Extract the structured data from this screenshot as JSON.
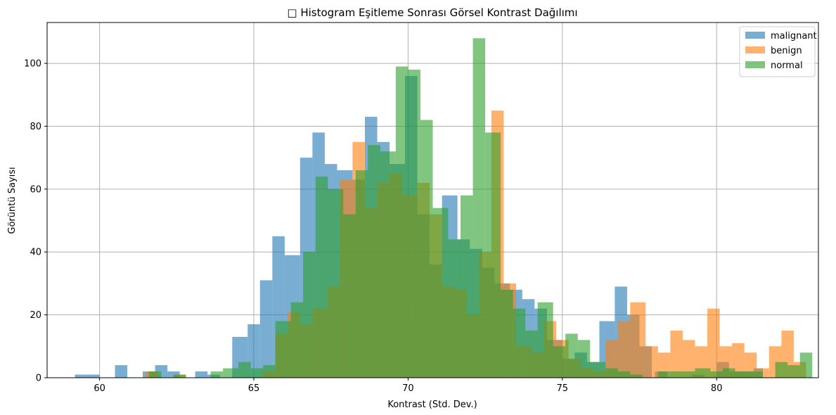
{
  "chart_data": {
    "type": "bar",
    "title": "□ Histogram Eşitleme Sonrası Görsel Kontrast Dağılımı",
    "xlabel": "Kontrast (Std. Dev.)",
    "ylabel": "Görüntü Sayısı",
    "xlim": [
      58.3,
      83.3
    ],
    "ylim": [
      0,
      113
    ],
    "xticks": [
      60,
      65,
      70,
      75,
      80
    ],
    "yticks": [
      0,
      20,
      40,
      60,
      80,
      100
    ],
    "grid": true,
    "legend_position": "top-right",
    "series": [
      {
        "name": "malignant",
        "color": "#1f77b4",
        "bins": [
          [
            59.2,
            59.6,
            1
          ],
          [
            59.6,
            60.0,
            1
          ],
          [
            60.5,
            60.9,
            4
          ],
          [
            61.4,
            61.8,
            2
          ],
          [
            61.8,
            62.2,
            4
          ],
          [
            62.2,
            62.6,
            2
          ],
          [
            63.1,
            63.5,
            2
          ],
          [
            63.5,
            63.9,
            1
          ],
          [
            64.3,
            64.8,
            13
          ],
          [
            64.8,
            65.2,
            17
          ],
          [
            65.2,
            65.6,
            31
          ],
          [
            65.6,
            66.0,
            45
          ],
          [
            66.0,
            66.5,
            39
          ],
          [
            66.5,
            66.9,
            70
          ],
          [
            66.9,
            67.3,
            78
          ],
          [
            67.3,
            67.7,
            68
          ],
          [
            67.7,
            68.2,
            66
          ],
          [
            68.2,
            68.6,
            63
          ],
          [
            68.6,
            69.0,
            83
          ],
          [
            69.0,
            69.4,
            75
          ],
          [
            69.4,
            69.9,
            68
          ],
          [
            69.9,
            70.3,
            96
          ],
          [
            70.3,
            70.7,
            52
          ],
          [
            70.7,
            71.1,
            36
          ],
          [
            71.1,
            71.6,
            58
          ],
          [
            71.6,
            72.0,
            44
          ],
          [
            72.0,
            72.4,
            41
          ],
          [
            72.4,
            72.8,
            35
          ],
          [
            72.8,
            73.3,
            30
          ],
          [
            73.3,
            73.7,
            28
          ],
          [
            73.7,
            74.1,
            25
          ],
          [
            74.1,
            74.5,
            22
          ],
          [
            74.5,
            75.0,
            12
          ],
          [
            75.0,
            75.4,
            6
          ],
          [
            75.4,
            75.8,
            8
          ],
          [
            75.8,
            76.2,
            5
          ],
          [
            76.2,
            76.7,
            18
          ],
          [
            76.7,
            77.1,
            29
          ],
          [
            77.1,
            77.5,
            20
          ],
          [
            77.5,
            77.9,
            10
          ],
          [
            78.0,
            78.4,
            2
          ],
          [
            79.2,
            79.6,
            1
          ],
          [
            80.0,
            80.4,
            5
          ],
          [
            80.4,
            80.8,
            2
          ],
          [
            80.8,
            81.2,
            2
          ],
          [
            81.2,
            81.5,
            3
          ]
        ]
      },
      {
        "name": "benign",
        "color": "#ff7f0e",
        "bins": [
          [
            61.5,
            61.9,
            2
          ],
          [
            62.4,
            62.8,
            1
          ],
          [
            65.3,
            65.7,
            2
          ],
          [
            65.7,
            66.1,
            14
          ],
          [
            66.1,
            66.5,
            21
          ],
          [
            66.5,
            66.9,
            17
          ],
          [
            66.9,
            67.4,
            22
          ],
          [
            67.4,
            67.8,
            29
          ],
          [
            67.8,
            68.2,
            63
          ],
          [
            68.2,
            68.6,
            75
          ],
          [
            68.6,
            69.0,
            54
          ],
          [
            69.0,
            69.4,
            62
          ],
          [
            69.4,
            69.8,
            65
          ],
          [
            69.8,
            70.3,
            58
          ],
          [
            70.3,
            70.7,
            62
          ],
          [
            70.7,
            71.1,
            52
          ],
          [
            71.1,
            71.5,
            29
          ],
          [
            71.5,
            71.9,
            28
          ],
          [
            71.9,
            72.3,
            20
          ],
          [
            72.3,
            72.7,
            40
          ],
          [
            72.7,
            73.1,
            85
          ],
          [
            73.1,
            73.5,
            30
          ],
          [
            73.5,
            74.0,
            10
          ],
          [
            74.0,
            74.4,
            8
          ],
          [
            74.4,
            74.8,
            18
          ],
          [
            74.8,
            75.2,
            12
          ],
          [
            75.2,
            75.6,
            6
          ],
          [
            75.6,
            76.0,
            3
          ],
          [
            76.0,
            76.4,
            2
          ],
          [
            76.4,
            76.8,
            12
          ],
          [
            76.8,
            77.2,
            18
          ],
          [
            77.2,
            77.7,
            24
          ],
          [
            77.7,
            78.1,
            10
          ],
          [
            78.1,
            78.5,
            8
          ],
          [
            78.5,
            78.9,
            15
          ],
          [
            78.9,
            79.3,
            12
          ],
          [
            79.3,
            79.7,
            10
          ],
          [
            79.7,
            80.1,
            22
          ],
          [
            80.1,
            80.5,
            10
          ],
          [
            80.5,
            80.9,
            11
          ],
          [
            80.9,
            81.3,
            8
          ],
          [
            81.3,
            81.7,
            3
          ],
          [
            81.7,
            82.1,
            10
          ],
          [
            82.1,
            82.5,
            15
          ],
          [
            82.5,
            82.9,
            5
          ]
        ]
      },
      {
        "name": "normal",
        "color": "#2ca02c",
        "bins": [
          [
            61.6,
            62.0,
            2
          ],
          [
            62.4,
            62.8,
            1
          ],
          [
            63.6,
            64.0,
            2
          ],
          [
            64.0,
            64.5,
            3
          ],
          [
            64.5,
            64.9,
            5
          ],
          [
            64.9,
            65.3,
            3
          ],
          [
            65.3,
            65.7,
            4
          ],
          [
            65.7,
            66.2,
            18
          ],
          [
            66.2,
            66.6,
            24
          ],
          [
            66.6,
            67.0,
            40
          ],
          [
            67.0,
            67.4,
            64
          ],
          [
            67.4,
            67.9,
            60
          ],
          [
            67.9,
            68.3,
            52
          ],
          [
            68.3,
            68.7,
            66
          ],
          [
            68.7,
            69.1,
            74
          ],
          [
            69.1,
            69.6,
            72
          ],
          [
            69.6,
            70.0,
            99
          ],
          [
            70.0,
            70.4,
            98
          ],
          [
            70.4,
            70.8,
            82
          ],
          [
            70.8,
            71.3,
            54
          ],
          [
            71.3,
            71.7,
            44
          ],
          [
            71.7,
            72.1,
            58
          ],
          [
            72.1,
            72.5,
            108
          ],
          [
            72.5,
            73.0,
            78
          ],
          [
            73.0,
            73.4,
            28
          ],
          [
            73.4,
            73.8,
            22
          ],
          [
            73.8,
            74.2,
            15
          ],
          [
            74.2,
            74.7,
            24
          ],
          [
            74.7,
            75.1,
            10
          ],
          [
            75.1,
            75.5,
            14
          ],
          [
            75.5,
            75.9,
            12
          ],
          [
            75.9,
            76.4,
            5
          ],
          [
            76.4,
            76.8,
            3
          ],
          [
            76.8,
            77.2,
            2
          ],
          [
            77.2,
            77.6,
            1
          ],
          [
            78.1,
            78.5,
            2
          ],
          [
            78.5,
            78.9,
            2
          ],
          [
            78.9,
            79.3,
            2
          ],
          [
            79.3,
            79.8,
            3
          ],
          [
            79.8,
            80.2,
            2
          ],
          [
            80.2,
            80.6,
            3
          ],
          [
            80.6,
            81.0,
            2
          ],
          [
            81.0,
            81.5,
            2
          ],
          [
            81.9,
            82.3,
            5
          ],
          [
            82.3,
            82.7,
            4
          ],
          [
            82.7,
            83.1,
            8
          ]
        ]
      }
    ]
  }
}
